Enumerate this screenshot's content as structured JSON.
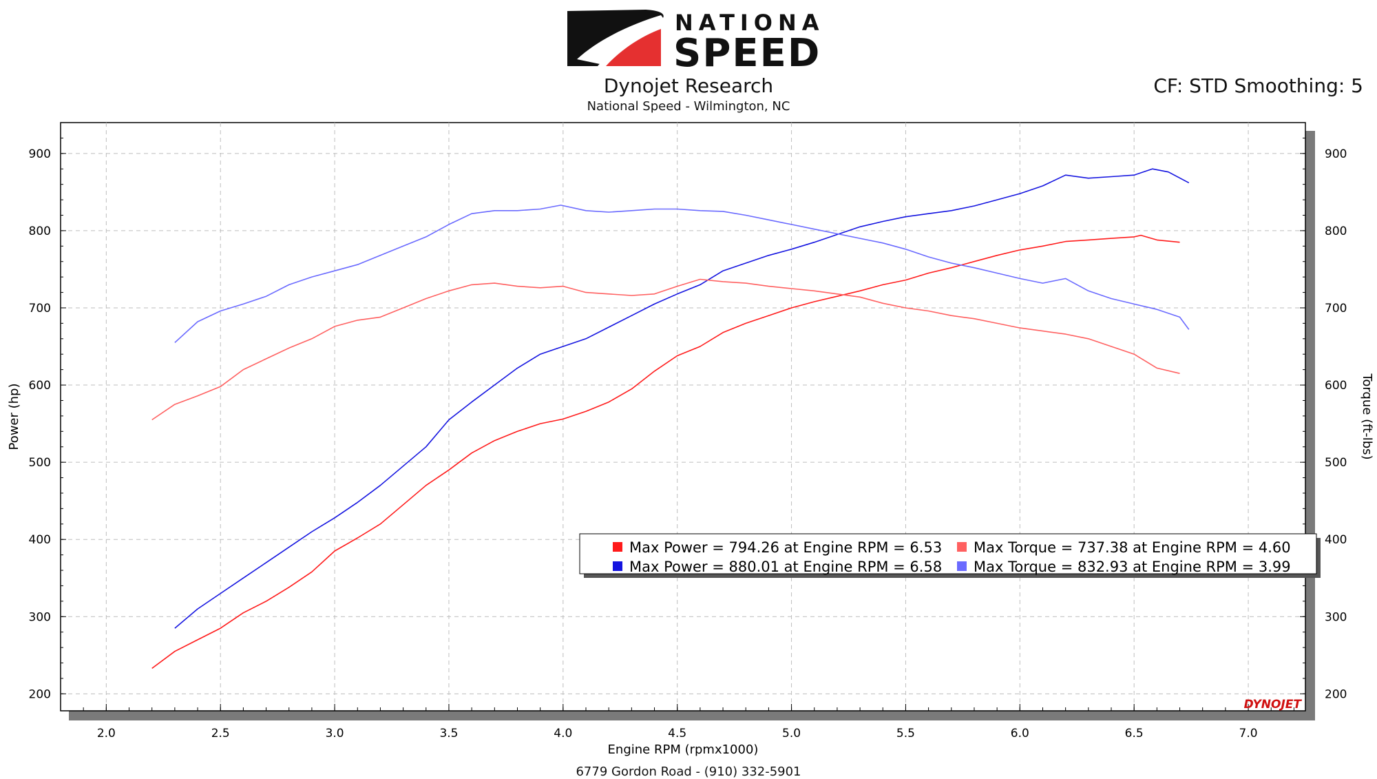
{
  "brand": {
    "line1": "NATIONAL",
    "line2": "SPEED",
    "red": "#e53030"
  },
  "header": {
    "title": "Dynojet Research",
    "subtitle": "National Speed - Wilmington, NC",
    "cf_text": "CF: STD Smoothing: 5"
  },
  "footer": {
    "address": "6779 Gordon Road - (910) 332-5901"
  },
  "watermark": "DYNOJET",
  "chart_data": {
    "type": "line",
    "xlabel": "Engine RPM (rpmx1000)",
    "ylabel_left": "Power (hp)",
    "ylabel_right": "Torque (ft-lbs)",
    "xlim": [
      1.8,
      7.25
    ],
    "ylim": [
      178,
      940
    ],
    "x_ticks": [
      "2.0",
      "2.5",
      "3.0",
      "3.5",
      "4.0",
      "4.5",
      "5.0",
      "5.5",
      "6.0",
      "6.5",
      "7.0"
    ],
    "y_ticks": [
      "200",
      "300",
      "400",
      "500",
      "600",
      "700",
      "800",
      "900"
    ],
    "grid": true,
    "series": [
      {
        "key": "power1",
        "color": "#ff1a1a",
        "x": [
          2.2,
          2.3,
          2.4,
          2.5,
          2.6,
          2.7,
          2.8,
          2.9,
          3.0,
          3.1,
          3.2,
          3.3,
          3.4,
          3.5,
          3.6,
          3.7,
          3.8,
          3.9,
          4.0,
          4.1,
          4.2,
          4.3,
          4.4,
          4.5,
          4.6,
          4.7,
          4.8,
          4.9,
          5.0,
          5.1,
          5.2,
          5.3,
          5.4,
          5.5,
          5.6,
          5.7,
          5.8,
          5.9,
          6.0,
          6.1,
          6.2,
          6.3,
          6.4,
          6.5,
          6.53,
          6.6,
          6.7
        ],
        "y": [
          233,
          255,
          270,
          285,
          305,
          320,
          338,
          358,
          385,
          402,
          420,
          445,
          470,
          490,
          512,
          528,
          540,
          550,
          556,
          566,
          578,
          595,
          618,
          638,
          650,
          668,
          680,
          690,
          700,
          708,
          715,
          722,
          730,
          736,
          745,
          752,
          760,
          768,
          775,
          780,
          786,
          788,
          790,
          792,
          794,
          788,
          785
        ]
      },
      {
        "key": "power2",
        "color": "#1414e0",
        "x": [
          2.3,
          2.4,
          2.5,
          2.6,
          2.7,
          2.8,
          2.9,
          3.0,
          3.1,
          3.2,
          3.3,
          3.4,
          3.5,
          3.6,
          3.7,
          3.8,
          3.9,
          4.0,
          4.1,
          4.2,
          4.3,
          4.4,
          4.5,
          4.6,
          4.7,
          4.8,
          4.9,
          5.0,
          5.1,
          5.2,
          5.3,
          5.4,
          5.5,
          5.6,
          5.7,
          5.8,
          5.9,
          6.0,
          6.1,
          6.2,
          6.3,
          6.4,
          6.5,
          6.58,
          6.65,
          6.74
        ],
        "y": [
          285,
          310,
          330,
          350,
          370,
          390,
          410,
          428,
          448,
          470,
          495,
          520,
          555,
          578,
          600,
          622,
          640,
          650,
          660,
          675,
          690,
          705,
          718,
          730,
          748,
          758,
          768,
          776,
          785,
          795,
          805,
          812,
          818,
          822,
          826,
          832,
          840,
          848,
          858,
          872,
          868,
          870,
          872,
          880,
          876,
          862
        ]
      },
      {
        "key": "torque1",
        "color": "#ff6060",
        "x": [
          2.2,
          2.3,
          2.4,
          2.5,
          2.6,
          2.7,
          2.8,
          2.9,
          3.0,
          3.1,
          3.2,
          3.3,
          3.4,
          3.5,
          3.6,
          3.7,
          3.8,
          3.9,
          4.0,
          4.1,
          4.2,
          4.3,
          4.4,
          4.5,
          4.6,
          4.7,
          4.8,
          4.9,
          5.0,
          5.1,
          5.2,
          5.3,
          5.4,
          5.5,
          5.6,
          5.7,
          5.8,
          5.9,
          6.0,
          6.1,
          6.2,
          6.3,
          6.4,
          6.5,
          6.6,
          6.7
        ],
        "y": [
          555,
          575,
          586,
          598,
          620,
          634,
          648,
          660,
          676,
          684,
          688,
          700,
          712,
          722,
          730,
          732,
          728,
          726,
          728,
          720,
          718,
          716,
          718,
          728,
          737,
          734,
          732,
          728,
          725,
          722,
          718,
          714,
          706,
          700,
          696,
          690,
          686,
          680,
          674,
          670,
          666,
          660,
          650,
          640,
          622,
          615
        ]
      },
      {
        "key": "torque2",
        "color": "#6a6aff",
        "x": [
          2.3,
          2.4,
          2.5,
          2.6,
          2.7,
          2.8,
          2.9,
          3.0,
          3.1,
          3.2,
          3.3,
          3.4,
          3.5,
          3.6,
          3.7,
          3.8,
          3.9,
          3.99,
          4.1,
          4.2,
          4.3,
          4.4,
          4.5,
          4.6,
          4.7,
          4.8,
          4.9,
          5.0,
          5.1,
          5.2,
          5.3,
          5.4,
          5.5,
          5.6,
          5.7,
          5.8,
          5.9,
          6.0,
          6.1,
          6.2,
          6.3,
          6.4,
          6.5,
          6.6,
          6.7,
          6.74
        ],
        "y": [
          655,
          682,
          696,
          705,
          715,
          730,
          740,
          748,
          756,
          768,
          780,
          792,
          808,
          822,
          826,
          826,
          828,
          833,
          826,
          824,
          826,
          828,
          828,
          826,
          825,
          820,
          814,
          808,
          802,
          796,
          790,
          784,
          776,
          766,
          758,
          752,
          745,
          738,
          732,
          738,
          722,
          712,
          705,
          698,
          688,
          672
        ]
      }
    ],
    "legend": [
      {
        "series": "power1",
        "label": "Max Power = 794.26 at Engine RPM = 6.53"
      },
      {
        "series": "torque1",
        "label": "Max Torque = 737.38 at Engine RPM = 4.60"
      },
      {
        "series": "power2",
        "label": "Max Power = 880.01 at Engine RPM = 6.58"
      },
      {
        "series": "torque2",
        "label": "Max Torque = 832.93 at Engine RPM = 3.99"
      }
    ],
    "legend_position": "lower-right"
  }
}
